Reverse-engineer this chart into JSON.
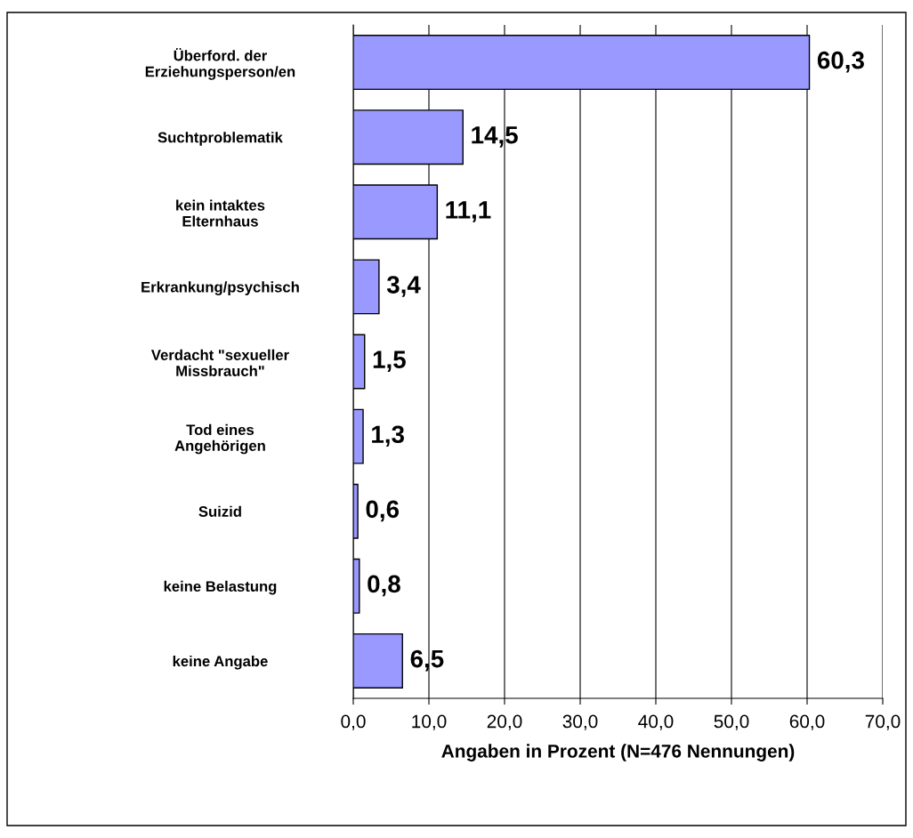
{
  "chart_data": {
    "type": "bar",
    "orientation": "horizontal",
    "categories": [
      "Überford. der\nErziehungsperson/en",
      "Suchtproblematik",
      "kein intaktes\nElternhaus",
      "Erkrankung/psychisch",
      "Verdacht \"sexueller\nMissbrauch\"",
      "Tod eines\nAngehörigen",
      "Suizid",
      "keine Belastung",
      "keine Angabe"
    ],
    "values": [
      60.3,
      14.5,
      11.1,
      3.4,
      1.5,
      1.3,
      0.6,
      0.8,
      6.5
    ],
    "value_labels": [
      "60,3",
      "14,5",
      "11,1",
      "3,4",
      "1,5",
      "1,3",
      "0,6",
      "0,8",
      "6,5"
    ],
    "color": "#9999ff",
    "xlim": [
      0,
      70
    ],
    "xticks": [
      {
        "value": 0,
        "label": "0,0"
      },
      {
        "value": 10,
        "label": "10,0"
      },
      {
        "value": 20,
        "label": "20,0"
      },
      {
        "value": 30,
        "label": "30,0"
      },
      {
        "value": 40,
        "label": "40,0"
      },
      {
        "value": 50,
        "label": "50,0"
      },
      {
        "value": 60,
        "label": "60,0"
      },
      {
        "value": 70,
        "label": "70,0"
      }
    ],
    "xlabel": "Angaben in Prozent (N=476 Nennungen)",
    "grid": "x",
    "legend": false
  }
}
